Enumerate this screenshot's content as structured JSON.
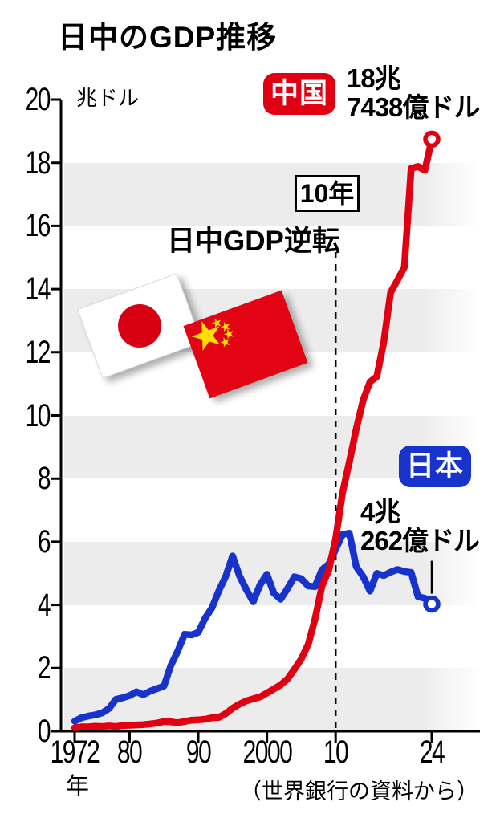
{
  "chart_data": {
    "type": "line",
    "title": "日中のGDP推移",
    "unit_label": "兆ドル",
    "x_axis_suffix": "年",
    "source": "（世界銀行の資料から）",
    "ylim": [
      0,
      20
    ],
    "xlim": [
      1972,
      2024
    ],
    "y_ticks": [
      0,
      2,
      4,
      6,
      8,
      10,
      12,
      14,
      16,
      18,
      20
    ],
    "x_ticks": [
      {
        "label": "1972",
        "year": 1972
      },
      {
        "label": "80",
        "year": 1980
      },
      {
        "label": "90",
        "year": 1990
      },
      {
        "label": "2000",
        "year": 2000
      },
      {
        "label": "10",
        "year": 2010
      },
      {
        "label": "24",
        "year": 2024
      }
    ],
    "grid": "alternating horizontal gray bands every 2 units starting at 0",
    "band_color": "#ececec",
    "annotation": {
      "box_label": "10年",
      "text": "日中GDP逆転",
      "year": 2010
    },
    "years": [
      1972,
      1973,
      1974,
      1975,
      1976,
      1977,
      1978,
      1979,
      1980,
      1981,
      1982,
      1983,
      1984,
      1985,
      1986,
      1987,
      1988,
      1989,
      1990,
      1991,
      1992,
      1993,
      1994,
      1995,
      1996,
      1997,
      1998,
      1999,
      2000,
      2001,
      2002,
      2003,
      2004,
      2005,
      2006,
      2007,
      2008,
      2009,
      2010,
      2011,
      2012,
      2013,
      2014,
      2015,
      2016,
      2017,
      2018,
      2019,
      2020,
      2021,
      2022,
      2023,
      2024
    ],
    "series": [
      {
        "name": "中国",
        "color": "#e00012",
        "end_value": 18.7438,
        "end_label": [
          "18兆",
          "7438億ドル"
        ],
        "values": [
          0.11,
          0.14,
          0.14,
          0.16,
          0.15,
          0.17,
          0.15,
          0.18,
          0.19,
          0.2,
          0.21,
          0.23,
          0.26,
          0.31,
          0.3,
          0.27,
          0.31,
          0.35,
          0.36,
          0.38,
          0.43,
          0.44,
          0.56,
          0.73,
          0.86,
          0.96,
          1.03,
          1.09,
          1.21,
          1.34,
          1.47,
          1.66,
          1.96,
          2.29,
          2.75,
          3.55,
          4.59,
          5.1,
          6.09,
          7.55,
          8.53,
          9.57,
          10.48,
          11.06,
          11.23,
          12.31,
          13.89,
          14.28,
          14.69,
          17.82,
          17.88,
          17.76,
          18.7438
        ]
      },
      {
        "name": "日本",
        "color": "#1733cc",
        "end_value": 4.0262,
        "end_label": [
          "4兆",
          "262億ドル"
        ],
        "values": [
          0.32,
          0.43,
          0.48,
          0.52,
          0.58,
          0.72,
          1.01,
          1.06,
          1.13,
          1.25,
          1.16,
          1.27,
          1.35,
          1.43,
          2.08,
          2.53,
          3.07,
          3.05,
          3.13,
          3.58,
          3.91,
          4.45,
          4.91,
          5.55,
          4.92,
          4.49,
          4.1,
          4.64,
          4.97,
          4.37,
          4.18,
          4.52,
          4.89,
          4.83,
          4.6,
          4.58,
          5.11,
          5.29,
          5.76,
          6.23,
          6.27,
          5.21,
          4.9,
          4.44,
          5.0,
          4.93,
          5.04,
          5.12,
          5.06,
          5.03,
          4.26,
          4.21,
          4.0262
        ]
      }
    ]
  }
}
